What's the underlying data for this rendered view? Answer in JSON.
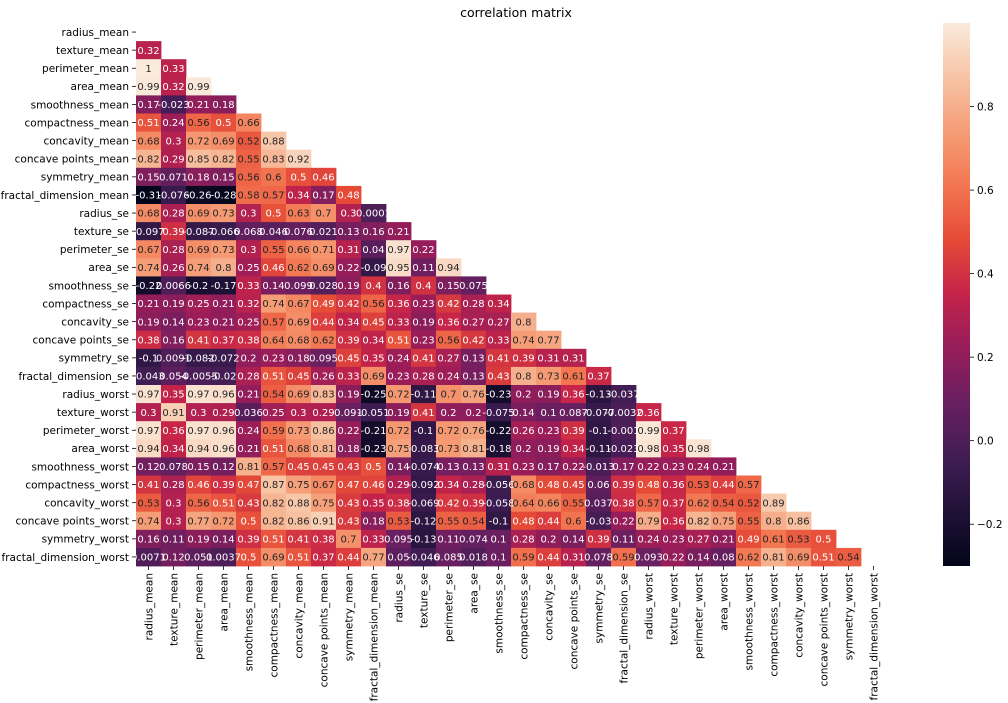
{
  "chart_data": {
    "type": "heatmap",
    "title": "correlation matrix",
    "xlabel": "",
    "ylabel": "",
    "mask": "upper triangle including diagonal",
    "colormap": "rocket",
    "colorbar": {
      "range": [
        -0.3,
        1.0
      ],
      "ticks": [
        -0.2,
        0.0,
        0.2,
        0.4,
        0.6,
        0.8
      ],
      "tick_labels": [
        "−0.2",
        "0.0",
        "0.2",
        "0.4",
        "0.6",
        "0.8"
      ]
    },
    "variables": [
      "radius_mean",
      "texture_mean",
      "perimeter_mean",
      "area_mean",
      "smoothness_mean",
      "compactness_mean",
      "concavity_mean",
      "concave points_mean",
      "symmetry_mean",
      "fractal_dimension_mean",
      "radius_se",
      "texture_se",
      "perimeter_se",
      "area_se",
      "smoothness_se",
      "compactness_se",
      "concavity_se",
      "concave points_se",
      "symmetry_se",
      "fractal_dimension_se",
      "radius_worst",
      "texture_worst",
      "perimeter_worst",
      "area_worst",
      "smoothness_worst",
      "compactness_worst",
      "concavity_worst",
      "concave points_worst",
      "symmetry_worst",
      "fractal_dimension_worst"
    ],
    "labels": [
      [],
      [
        "0.32"
      ],
      [
        "1",
        "0.33"
      ],
      [
        "0.99",
        "0.32",
        "0.99"
      ],
      [
        "0.17",
        "-0.023",
        "0.21",
        "0.18"
      ],
      [
        "0.51",
        "0.24",
        "0.56",
        "0.5",
        "0.66"
      ],
      [
        "0.68",
        "0.3",
        "0.72",
        "0.69",
        "0.52",
        "0.88"
      ],
      [
        "0.82",
        "0.29",
        "0.85",
        "0.82",
        "0.55",
        "0.83",
        "0.92"
      ],
      [
        "0.15",
        "0.071",
        "0.18",
        "0.15",
        "0.56",
        "0.6",
        "0.5",
        "0.46"
      ],
      [
        "-0.31",
        "-0.076",
        "-0.26",
        "-0.28",
        "0.58",
        "0.57",
        "0.34",
        "0.17",
        "0.48"
      ],
      [
        "0.68",
        "0.28",
        "0.69",
        "0.73",
        "0.3",
        "0.5",
        "0.63",
        "0.7",
        "0.3",
        "0.0001"
      ],
      [
        "-0.097",
        "0.39",
        "-0.087",
        "-0.066",
        "0.068",
        "0.046",
        "0.076",
        "0.021",
        "0.13",
        "0.16",
        "0.21"
      ],
      [
        "0.67",
        "0.28",
        "0.69",
        "0.73",
        "0.3",
        "0.55",
        "0.66",
        "0.71",
        "0.31",
        "0.04",
        "0.97",
        "0.22"
      ],
      [
        "0.74",
        "0.26",
        "0.74",
        "0.8",
        "0.25",
        "0.46",
        "0.62",
        "0.69",
        "0.22",
        "-0.09",
        "0.95",
        "0.11",
        "0.94"
      ],
      [
        "-0.22",
        "0.0066",
        "-0.2",
        "-0.17",
        "0.33",
        "0.14",
        "0.099",
        "0.028",
        "0.19",
        "0.4",
        "0.16",
        "0.4",
        "0.15",
        "0.075"
      ],
      [
        "0.21",
        "0.19",
        "0.25",
        "0.21",
        "0.32",
        "0.74",
        "0.67",
        "0.49",
        "0.42",
        "0.56",
        "0.36",
        "0.23",
        "0.42",
        "0.28",
        "0.34"
      ],
      [
        "0.19",
        "0.14",
        "0.23",
        "0.21",
        "0.25",
        "0.57",
        "0.69",
        "0.44",
        "0.34",
        "0.45",
        "0.33",
        "0.19",
        "0.36",
        "0.27",
        "0.27",
        "0.8"
      ],
      [
        "0.38",
        "0.16",
        "0.41",
        "0.37",
        "0.38",
        "0.64",
        "0.68",
        "0.62",
        "0.39",
        "0.34",
        "0.51",
        "0.23",
        "0.56",
        "0.42",
        "0.33",
        "0.74",
        "0.77"
      ],
      [
        "-0.1",
        "0.0091",
        "-0.082",
        "-0.072",
        "0.2",
        "0.23",
        "0.18",
        "0.095",
        "0.45",
        "0.35",
        "0.24",
        "0.41",
        "0.27",
        "0.13",
        "0.41",
        "0.39",
        "0.31",
        "0.31"
      ],
      [
        "-0.043",
        "0.054",
        "-0.0055",
        "-0.02",
        "0.28",
        "0.51",
        "0.45",
        "0.26",
        "0.33",
        "0.69",
        "0.23",
        "0.28",
        "0.24",
        "0.13",
        "0.43",
        "0.8",
        "0.73",
        "0.61",
        "0.37"
      ],
      [
        "0.97",
        "0.35",
        "0.97",
        "0.96",
        "0.21",
        "0.54",
        "0.69",
        "0.83",
        "0.19",
        "-0.25",
        "0.72",
        "-0.11",
        "0.7",
        "0.76",
        "-0.23",
        "0.2",
        "0.19",
        "0.36",
        "-0.13",
        "-0.037"
      ],
      [
        "0.3",
        "0.91",
        "0.3",
        "0.29",
        "0.036",
        "0.25",
        "0.3",
        "0.29",
        "0.091",
        "-0.051",
        "0.19",
        "0.41",
        "0.2",
        "0.2",
        "-0.075",
        "0.14",
        "0.1",
        "0.087",
        "-0.077",
        "-0.0032",
        "0.36"
      ],
      [
        "0.97",
        "0.36",
        "0.97",
        "0.96",
        "0.24",
        "0.59",
        "0.73",
        "0.86",
        "0.22",
        "-0.21",
        "0.72",
        "-0.1",
        "0.72",
        "0.76",
        "-0.22",
        "0.26",
        "0.23",
        "0.39",
        "-0.1",
        "-0.001",
        "0.99",
        "0.37"
      ],
      [
        "0.94",
        "0.34",
        "0.94",
        "0.96",
        "0.21",
        "0.51",
        "0.68",
        "0.81",
        "0.18",
        "-0.23",
        "0.75",
        "-0.083",
        "0.73",
        "0.81",
        "-0.18",
        "0.2",
        "0.19",
        "0.34",
        "-0.11",
        "-0.023",
        "0.98",
        "0.35",
        "0.98"
      ],
      [
        "0.12",
        "0.078",
        "0.15",
        "0.12",
        "0.81",
        "0.57",
        "0.45",
        "0.45",
        "0.43",
        "0.5",
        "0.14",
        "-0.074",
        "0.13",
        "0.13",
        "0.31",
        "0.23",
        "0.17",
        "0.22",
        "-0.013",
        "0.17",
        "0.22",
        "0.23",
        "0.24",
        "0.21"
      ],
      [
        "0.41",
        "0.28",
        "0.46",
        "0.39",
        "0.47",
        "0.87",
        "0.75",
        "0.67",
        "0.47",
        "0.46",
        "0.29",
        "-0.092",
        "0.34",
        "0.28",
        "-0.056",
        "0.68",
        "0.48",
        "0.45",
        "0.06",
        "0.39",
        "0.48",
        "0.36",
        "0.53",
        "0.44",
        "0.57"
      ],
      [
        "0.53",
        "0.3",
        "0.56",
        "0.51",
        "0.43",
        "0.82",
        "0.88",
        "0.75",
        "0.43",
        "0.35",
        "0.38",
        "-0.069",
        "0.42",
        "0.39",
        "-0.058",
        "0.64",
        "0.66",
        "0.55",
        "0.037",
        "0.38",
        "0.57",
        "0.37",
        "0.62",
        "0.54",
        "0.52",
        "0.89"
      ],
      [
        "0.74",
        "0.3",
        "0.77",
        "0.72",
        "0.5",
        "0.82",
        "0.86",
        "0.91",
        "0.43",
        "0.18",
        "0.53",
        "-0.12",
        "0.55",
        "0.54",
        "-0.1",
        "0.48",
        "0.44",
        "0.6",
        "-0.03",
        "0.22",
        "0.79",
        "0.36",
        "0.82",
        "0.75",
        "0.55",
        "0.8",
        "0.86"
      ],
      [
        "0.16",
        "0.11",
        "0.19",
        "0.14",
        "0.39",
        "0.51",
        "0.41",
        "0.38",
        "0.7",
        "0.33",
        "0.095",
        "-0.13",
        "0.11",
        "0.074",
        "0.1",
        "0.28",
        "0.2",
        "0.14",
        "0.39",
        "0.11",
        "0.24",
        "0.23",
        "0.27",
        "0.21",
        "0.49",
        "0.61",
        "0.53",
        "0.5"
      ],
      [
        "0.0071",
        "0.12",
        "0.051",
        "0.0037",
        "0.5",
        "0.69",
        "0.51",
        "0.37",
        "0.44",
        "0.77",
        "0.05",
        "-0.046",
        "0.085",
        "0.018",
        "0.1",
        "0.59",
        "0.44",
        "0.31",
        "0.078",
        "0.59",
        "0.093",
        "0.22",
        "0.14",
        "0.08",
        "0.62",
        "0.81",
        "0.69",
        "0.51",
        "0.54"
      ]
    ],
    "values": [
      [],
      [
        0.32
      ],
      [
        1,
        0.33
      ],
      [
        0.99,
        0.32,
        0.99
      ],
      [
        0.17,
        -0.023,
        0.21,
        0.18
      ],
      [
        0.51,
        0.24,
        0.56,
        0.5,
        0.66
      ],
      [
        0.68,
        0.3,
        0.72,
        0.69,
        0.52,
        0.88
      ],
      [
        0.82,
        0.29,
        0.85,
        0.82,
        0.55,
        0.83,
        0.92
      ],
      [
        0.15,
        0.071,
        0.18,
        0.15,
        0.56,
        0.6,
        0.5,
        0.46
      ],
      [
        -0.31,
        -0.076,
        -0.26,
        -0.28,
        0.58,
        0.57,
        0.34,
        0.17,
        0.48
      ],
      [
        0.68,
        0.28,
        0.69,
        0.73,
        0.3,
        0.5,
        0.63,
        0.7,
        0.3,
        0.0001
      ],
      [
        -0.097,
        0.39,
        -0.087,
        -0.066,
        0.068,
        0.046,
        0.076,
        0.021,
        0.13,
        0.16,
        0.21
      ],
      [
        0.67,
        0.28,
        0.69,
        0.73,
        0.3,
        0.55,
        0.66,
        0.71,
        0.31,
        0.04,
        0.97,
        0.22
      ],
      [
        0.74,
        0.26,
        0.74,
        0.8,
        0.25,
        0.46,
        0.62,
        0.69,
        0.22,
        -0.09,
        0.95,
        0.11,
        0.94
      ],
      [
        -0.22,
        0.0066,
        -0.2,
        -0.17,
        0.33,
        0.14,
        0.099,
        0.028,
        0.19,
        0.4,
        0.16,
        0.4,
        0.15,
        0.075
      ],
      [
        0.21,
        0.19,
        0.25,
        0.21,
        0.32,
        0.74,
        0.67,
        0.49,
        0.42,
        0.56,
        0.36,
        0.23,
        0.42,
        0.28,
        0.34
      ],
      [
        0.19,
        0.14,
        0.23,
        0.21,
        0.25,
        0.57,
        0.69,
        0.44,
        0.34,
        0.45,
        0.33,
        0.19,
        0.36,
        0.27,
        0.27,
        0.8
      ],
      [
        0.38,
        0.16,
        0.41,
        0.37,
        0.38,
        0.64,
        0.68,
        0.62,
        0.39,
        0.34,
        0.51,
        0.23,
        0.56,
        0.42,
        0.33,
        0.74,
        0.77
      ],
      [
        -0.1,
        0.0091,
        -0.082,
        -0.072,
        0.2,
        0.23,
        0.18,
        0.095,
        0.45,
        0.35,
        0.24,
        0.41,
        0.27,
        0.13,
        0.41,
        0.39,
        0.31,
        0.31
      ],
      [
        -0.043,
        0.054,
        -0.0055,
        -0.02,
        0.28,
        0.51,
        0.45,
        0.26,
        0.33,
        0.69,
        0.23,
        0.28,
        0.24,
        0.13,
        0.43,
        0.8,
        0.73,
        0.61,
        0.37
      ],
      [
        0.97,
        0.35,
        0.97,
        0.96,
        0.21,
        0.54,
        0.69,
        0.83,
        0.19,
        -0.25,
        0.72,
        -0.11,
        0.7,
        0.76,
        -0.23,
        0.2,
        0.19,
        0.36,
        -0.13,
        -0.037
      ],
      [
        0.3,
        0.91,
        0.3,
        0.29,
        0.036,
        0.25,
        0.3,
        0.29,
        0.091,
        -0.051,
        0.19,
        0.41,
        0.2,
        0.2,
        -0.075,
        0.14,
        0.1,
        0.087,
        -0.077,
        -0.0032,
        0.36
      ],
      [
        0.97,
        0.36,
        0.97,
        0.96,
        0.24,
        0.59,
        0.73,
        0.86,
        0.22,
        -0.21,
        0.72,
        -0.1,
        0.72,
        0.76,
        -0.22,
        0.26,
        0.23,
        0.39,
        -0.1,
        -0.001,
        0.99,
        0.37
      ],
      [
        0.94,
        0.34,
        0.94,
        0.96,
        0.21,
        0.51,
        0.68,
        0.81,
        0.18,
        -0.23,
        0.75,
        -0.083,
        0.73,
        0.81,
        -0.18,
        0.2,
        0.19,
        0.34,
        -0.11,
        -0.023,
        0.98,
        0.35,
        0.98
      ],
      [
        0.12,
        0.078,
        0.15,
        0.12,
        0.81,
        0.57,
        0.45,
        0.45,
        0.43,
        0.5,
        0.14,
        -0.074,
        0.13,
        0.13,
        0.31,
        0.23,
        0.17,
        0.22,
        -0.013,
        0.17,
        0.22,
        0.23,
        0.24,
        0.21
      ],
      [
        0.41,
        0.28,
        0.46,
        0.39,
        0.47,
        0.87,
        0.75,
        0.67,
        0.47,
        0.46,
        0.29,
        -0.092,
        0.34,
        0.28,
        -0.056,
        0.68,
        0.48,
        0.45,
        0.06,
        0.39,
        0.48,
        0.36,
        0.53,
        0.44,
        0.57
      ],
      [
        0.53,
        0.3,
        0.56,
        0.51,
        0.43,
        0.82,
        0.88,
        0.75,
        0.43,
        0.35,
        0.38,
        -0.069,
        0.42,
        0.39,
        -0.058,
        0.64,
        0.66,
        0.55,
        0.037,
        0.38,
        0.57,
        0.37,
        0.62,
        0.54,
        0.52,
        0.89
      ],
      [
        0.74,
        0.3,
        0.77,
        0.72,
        0.5,
        0.82,
        0.86,
        0.91,
        0.43,
        0.18,
        0.53,
        -0.12,
        0.55,
        0.54,
        -0.1,
        0.48,
        0.44,
        0.6,
        -0.03,
        0.22,
        0.79,
        0.36,
        0.82,
        0.75,
        0.55,
        0.8,
        0.86
      ],
      [
        0.16,
        0.11,
        0.19,
        0.14,
        0.39,
        0.51,
        0.41,
        0.38,
        0.7,
        0.33,
        0.095,
        -0.13,
        0.11,
        0.074,
        0.1,
        0.28,
        0.2,
        0.14,
        0.39,
        0.11,
        0.24,
        0.23,
        0.27,
        0.21,
        0.49,
        0.61,
        0.53,
        0.5
      ],
      [
        0.0071,
        0.12,
        0.051,
        0.0037,
        0.5,
        0.69,
        0.51,
        0.37,
        0.44,
        0.77,
        0.05,
        -0.046,
        0.085,
        0.018,
        0.1,
        0.59,
        0.44,
        0.31,
        0.078,
        0.59,
        0.093,
        0.22,
        0.14,
        0.08,
        0.62,
        0.81,
        0.69,
        0.51,
        0.54
      ]
    ]
  }
}
